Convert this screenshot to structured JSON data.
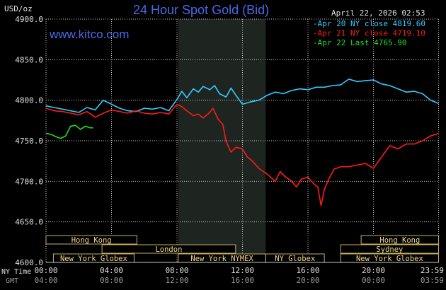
{
  "header": {
    "units": "USD/oz",
    "title": "24 Hour Spot Gold (Bid)",
    "timestamp": "April 22, 2026 02:53",
    "watermark": "www.kitco.com"
  },
  "colors": {
    "background": "#000000",
    "plot_bg": "#000000",
    "nymex_shade": "#1e2520",
    "grid": "#c8c8c8",
    "axis_text": "#e0e0e0",
    "title": "#4a68e6",
    "watermark": "#4a68e6",
    "apr20": "#33ccff",
    "apr21": "#ff1a1a",
    "apr22": "#22dd22",
    "market_box_fill": "#000000",
    "market_box_border": "#c8b060",
    "market_box_text": "#f0d890",
    "bottom_time": "#e0e0e0",
    "bottom_gmt": "#9a9a9a"
  },
  "chart_data": {
    "type": "line",
    "ylim": [
      4600,
      4900
    ],
    "xlim": [
      0,
      24
    ],
    "y_ticks": [
      "4900.0",
      "4850.0",
      "4800.0",
      "4750.0",
      "4700.0",
      "4650.0",
      "4600.0"
    ],
    "y_tick_values": [
      4900,
      4850,
      4800,
      4750,
      4700,
      4650,
      4600
    ],
    "x_tick_values": [
      0,
      4,
      8,
      12,
      16,
      20,
      23.98
    ],
    "ny_time_label": "NY Time",
    "gmt_label": "GMT",
    "ny_ticks": [
      "00:00",
      "04:00",
      "08:00",
      "12:00",
      "16:00",
      "20:00",
      "23:59"
    ],
    "gmt_ticks": [
      "04:00",
      "08:00",
      "12:00",
      "16:00",
      "20:00",
      "00:00",
      "03:59"
    ],
    "grid": true,
    "nymex_shade": [
      8.08,
      13.42
    ],
    "legend": [
      {
        "label": "-Apr 20 NY close 4819.60",
        "color": "#33ccff"
      },
      {
        "label": "-Apr 21 NY close 4719.10",
        "color": "#ff1a1a"
      },
      {
        "label": "-Apr 22 Last 4765.90",
        "color": "#22dd22"
      }
    ],
    "series": [
      {
        "key": "apr20",
        "x": [
          0,
          0.5,
          1.0,
          1.5,
          2.0,
          2.5,
          3.0,
          3.5,
          4.0,
          4.5,
          5.0,
          5.5,
          6.0,
          6.5,
          7.0,
          7.5,
          8.0,
          8.3,
          8.6,
          9.0,
          9.3,
          9.6,
          10.0,
          10.3,
          10.6,
          11.0,
          11.3,
          11.6,
          12.0,
          12.5,
          13.0,
          13.5,
          14.0,
          14.5,
          15.0,
          15.5,
          16.0,
          16.5,
          17.0,
          17.5,
          18.0,
          18.5,
          19.0,
          19.5,
          20.0,
          20.5,
          21.0,
          21.5,
          22.0,
          22.5,
          23.0,
          23.5,
          23.98
        ],
        "y": [
          4793,
          4791,
          4789,
          4787,
          4785,
          4791,
          4788,
          4800,
          4795,
          4790,
          4787,
          4786,
          4790,
          4789,
          4791,
          4787,
          4801,
          4811,
          4803,
          4814,
          4810,
          4817,
          4813,
          4818,
          4808,
          4804,
          4815,
          4806,
          4795,
          4798,
          4800,
          4806,
          4810,
          4808,
          4812,
          4814,
          4813,
          4816,
          4816,
          4818,
          4819,
          4826,
          4823,
          4824,
          4825,
          4820,
          4818,
          4814,
          4810,
          4811,
          4808,
          4800,
          4796
        ]
      },
      {
        "key": "apr21",
        "x": [
          0,
          0.5,
          1.0,
          1.5,
          2.0,
          2.5,
          3.0,
          3.5,
          4.0,
          4.5,
          5.0,
          5.5,
          6.0,
          6.5,
          7.0,
          7.5,
          8.0,
          8.3,
          8.6,
          9.0,
          9.3,
          9.6,
          10.0,
          10.2,
          10.5,
          10.8,
          11.0,
          11.3,
          11.6,
          12.0,
          12.3,
          12.6,
          13.0,
          13.5,
          14.0,
          14.3,
          14.6,
          15.0,
          15.3,
          15.6,
          16.0,
          16.3,
          16.6,
          16.8,
          17.0,
          17.3,
          17.6,
          18.0,
          18.5,
          19.0,
          19.5,
          20.0,
          20.5,
          21.0,
          21.5,
          22.0,
          22.5,
          23.0,
          23.5,
          23.98
        ],
        "y": [
          4790,
          4787,
          4786,
          4784,
          4782,
          4786,
          4779,
          4784,
          4788,
          4786,
          4784,
          4787,
          4784,
          4783,
          4785,
          4783,
          4795,
          4792,
          4787,
          4781,
          4783,
          4778,
          4785,
          4790,
          4777,
          4770,
          4749,
          4736,
          4742,
          4740,
          4730,
          4725,
          4716,
          4709,
          4700,
          4712,
          4706,
          4700,
          4693,
          4703,
          4705,
          4698,
          4693,
          4670,
          4690,
          4704,
          4715,
          4718,
          4718,
          4720,
          4722,
          4716,
          4730,
          4744,
          4740,
          4746,
          4746,
          4750,
          4756,
          4759
        ]
      },
      {
        "key": "apr22",
        "x": [
          0,
          0.3,
          0.6,
          0.9,
          1.2,
          1.5,
          1.8,
          2.1,
          2.4,
          2.7,
          2.88
        ],
        "y": [
          4759,
          4758,
          4755,
          4753,
          4756,
          4768,
          4769,
          4764,
          4768,
          4766,
          4766
        ]
      }
    ]
  },
  "markets": [
    {
      "label": "Hong Kong",
      "start": 0,
      "end": 5.55,
      "row": 0
    },
    {
      "label": "Hong Kong",
      "start": 19.25,
      "end": 23.98,
      "row": 0
    },
    {
      "label": "London",
      "start": 3.42,
      "end": 11.58,
      "row": 1
    },
    {
      "label": "Sydney",
      "start": 18.0,
      "end": 23.98,
      "row": 1
    },
    {
      "label": "New York Globex",
      "start": 0.45,
      "end": 5.38,
      "row": 2
    },
    {
      "label": "New York NYMEX",
      "start": 8.08,
      "end": 13.42,
      "row": 2
    },
    {
      "label": "NY Globex",
      "start": 13.42,
      "end": 17.0,
      "row": 2
    },
    {
      "label": "New York Globex",
      "start": 18.0,
      "end": 23.98,
      "row": 2
    }
  ]
}
